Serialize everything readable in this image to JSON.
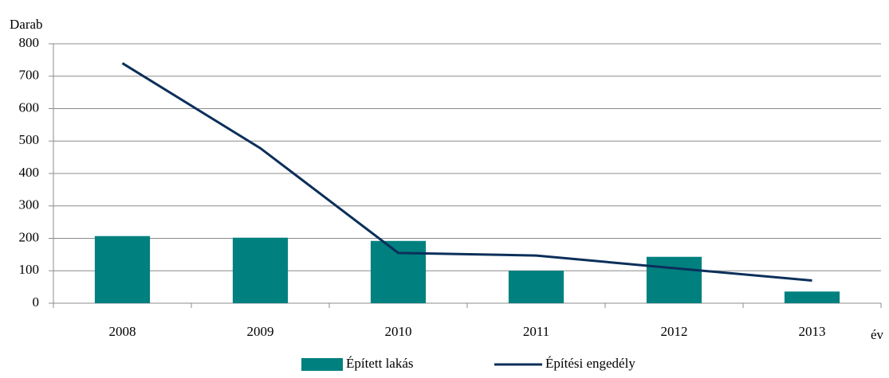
{
  "chart_data": {
    "type": "bar",
    "y_label": "Darab",
    "x_label": "év",
    "categories": [
      "2008",
      "2009",
      "2010",
      "2011",
      "2012",
      "2013"
    ],
    "series": [
      {
        "name": "Épített lakás",
        "type": "bar",
        "color": "#00807f",
        "values": [
          207,
          202,
          192,
          100,
          143,
          36
        ]
      },
      {
        "name": "Építési engedély",
        "type": "line",
        "color": "#0b2f5a",
        "values": [
          740,
          478,
          155,
          147,
          108,
          70
        ]
      }
    ],
    "ylim": [
      0,
      800
    ],
    "yticks": [
      0,
      100,
      200,
      300,
      400,
      500,
      600,
      700,
      800
    ],
    "grid": true
  }
}
